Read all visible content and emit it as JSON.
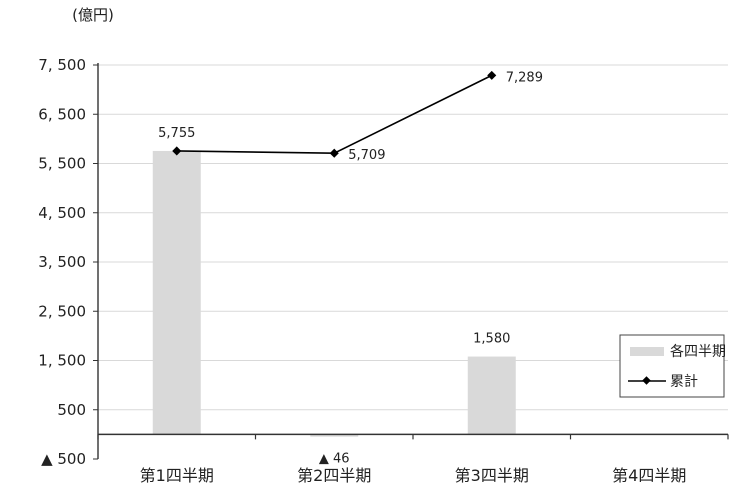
{
  "chart_data": {
    "type": "bar",
    "unit_label": "(億円)",
    "categories": [
      "第1四半期",
      "第2四半期",
      "第3四半期",
      "第4四半期"
    ],
    "y_ticks": [
      {
        "value": -500,
        "label": "▲ 500"
      },
      {
        "value": 500,
        "label": "500"
      },
      {
        "value": 1500,
        "label": "1, 500"
      },
      {
        "value": 2500,
        "label": "2, 500"
      },
      {
        "value": 3500,
        "label": "3, 500"
      },
      {
        "value": 4500,
        "label": "4, 500"
      },
      {
        "value": 5500,
        "label": "5, 500"
      },
      {
        "value": 6500,
        "label": "6, 500"
      },
      {
        "value": 7500,
        "label": "7, 500"
      }
    ],
    "ylim": [
      -500,
      7500
    ],
    "grid": true,
    "series": [
      {
        "name": "各四半期",
        "type": "bar",
        "color": "#d9d9d9",
        "values": [
          5755,
          -46,
          1580,
          null
        ],
        "labels": [
          "5,755",
          "▲ 46",
          "1,580",
          ""
        ]
      },
      {
        "name": "累計",
        "type": "line",
        "color": "#000000",
        "values": [
          5755,
          5709,
          7289,
          null
        ],
        "labels": [
          "5,755",
          "5,709",
          "7,289",
          ""
        ]
      }
    ],
    "legend_position": "right"
  }
}
